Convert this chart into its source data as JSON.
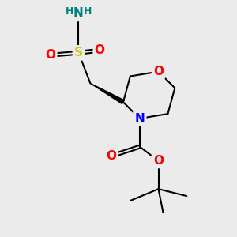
{
  "background_color": "#ebebeb",
  "bond_color": "#000000",
  "bond_width": 1.5,
  "atom_colors": {
    "O": "#ff0000",
    "N_ring": "#0000ff",
    "N_sulfonamide": "#008080",
    "S": "#cccc00",
    "H": "#008080",
    "C": "#000000"
  },
  "font_size_atoms": 11,
  "font_size_H": 9,
  "figsize": [
    3.0,
    3.0
  ],
  "dpi": 100
}
